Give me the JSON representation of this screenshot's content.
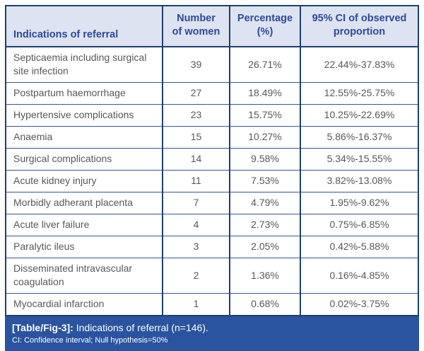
{
  "table": {
    "headers": [
      "Indications of referral",
      "Number\nof women",
      "Percentage\n(%)",
      "95% CI of observed\nproportion"
    ],
    "rows": [
      {
        "indication": "Septicaemia including surgical site infection",
        "women": "39",
        "percentage": "26.71%",
        "ci": "22.44%-37.83%"
      },
      {
        "indication": "Postpartum haemorrhage",
        "women": "27",
        "percentage": "18.49%",
        "ci": "12.55%-25.75%"
      },
      {
        "indication": "Hypertensive complications",
        "women": "23",
        "percentage": "15.75%",
        "ci": "10.25%-22.69%"
      },
      {
        "indication": "Anaemia",
        "women": "15",
        "percentage": "10.27%",
        "ci": "5.86%-16.37%"
      },
      {
        "indication": "Surgical complications",
        "women": "14",
        "percentage": "9.58%",
        "ci": "5.34%-15.55%"
      },
      {
        "indication": "Acute kidney injury",
        "women": "11",
        "percentage": "7.53%",
        "ci": "3.82%-13.08%"
      },
      {
        "indication": "Morbidly adherant placenta",
        "women": "7",
        "percentage": "4.79%",
        "ci": "1.95%-9.62%"
      },
      {
        "indication": "Acute liver failure",
        "women": "4",
        "percentage": "2.73%",
        "ci": "0.75%-6.85%"
      },
      {
        "indication": "Paralytic ileus",
        "women": "3",
        "percentage": "2.05%",
        "ci": "0.42%-5.88%"
      },
      {
        "indication": "Disseminated intravascular coagulation",
        "women": "2",
        "percentage": "1.36%",
        "ci": "0.16%-4.85%"
      },
      {
        "indication": "Myocardial infarction",
        "women": "1",
        "percentage": "0.68%",
        "ci": "0.02%-3.75%"
      }
    ],
    "caption_label": "[Table/Fig-3]:",
    "caption_text": " Indications of referral (n=146).",
    "footnote": "CI: Confidence interval; Null hypothesis=50%"
  },
  "colors": {
    "header_bg": "#dde3f0",
    "header_text": "#2c4a9c",
    "outer_border": "#1e4070",
    "row_divider": "#35588c",
    "body_text": "#57585a",
    "caption_bar_bg": "#2a53a0",
    "caption_text": "#ffffff"
  },
  "chart_data": {
    "type": "table",
    "title": "[Table/Fig-3]: Indications of referral (n=146).",
    "columns": [
      "Indications of referral",
      "Number of women",
      "Percentage (%)",
      "95% CI of observed proportion"
    ],
    "rows": [
      [
        "Septicaemia including surgical site infection",
        39,
        "26.71%",
        "22.44%-37.83%"
      ],
      [
        "Postpartum haemorrhage",
        27,
        "18.49%",
        "12.55%-25.75%"
      ],
      [
        "Hypertensive complications",
        23,
        "15.75%",
        "10.25%-22.69%"
      ],
      [
        "Anaemia",
        15,
        "10.27%",
        "5.86%-16.37%"
      ],
      [
        "Surgical complications",
        14,
        "9.58%",
        "5.34%-15.55%"
      ],
      [
        "Acute kidney injury",
        11,
        "7.53%",
        "3.82%-13.08%"
      ],
      [
        "Morbidly adherant placenta",
        7,
        "4.79%",
        "1.95%-9.62%"
      ],
      [
        "Acute liver failure",
        4,
        "2.73%",
        "0.75%-6.85%"
      ],
      [
        "Paralytic ileus",
        3,
        "2.05%",
        "0.42%-5.88%"
      ],
      [
        "Disseminated intravascular coagulation",
        2,
        "1.36%",
        "0.16%-4.85%"
      ],
      [
        "Myocardial infarction",
        1,
        "0.68%",
        "0.02%-3.75%"
      ]
    ],
    "footnote": "CI: Confidence interval; Null hypothesis=50%"
  }
}
